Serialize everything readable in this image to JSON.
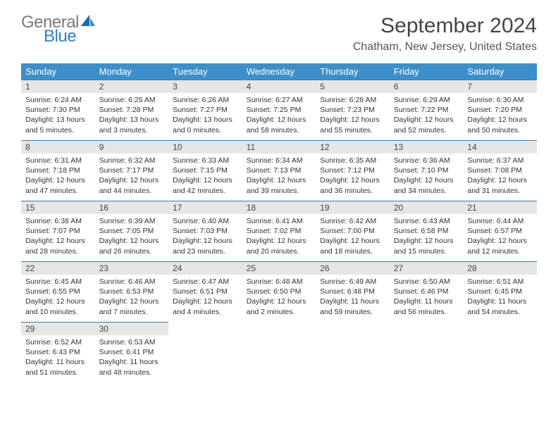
{
  "logo": {
    "part1": "General",
    "part2": "Blue"
  },
  "title": "September 2024",
  "location": "Chatham, New Jersey, United States",
  "colors": {
    "header_bg": "#3d8fc9",
    "header_text": "#ffffff",
    "row_divider": "#3d7aa8",
    "daynum_bg": "#e6e6e6",
    "logo_gray": "#7a7a7a",
    "logo_blue": "#2f81c5",
    "body_text": "#333333"
  },
  "days_of_week": [
    "Sunday",
    "Monday",
    "Tuesday",
    "Wednesday",
    "Thursday",
    "Friday",
    "Saturday"
  ],
  "weeks": [
    [
      {
        "n": "1",
        "sr": "Sunrise: 6:24 AM",
        "ss": "Sunset: 7:30 PM",
        "dl": "Daylight: 13 hours and 5 minutes."
      },
      {
        "n": "2",
        "sr": "Sunrise: 6:25 AM",
        "ss": "Sunset: 7:28 PM",
        "dl": "Daylight: 13 hours and 3 minutes."
      },
      {
        "n": "3",
        "sr": "Sunrise: 6:26 AM",
        "ss": "Sunset: 7:27 PM",
        "dl": "Daylight: 13 hours and 0 minutes."
      },
      {
        "n": "4",
        "sr": "Sunrise: 6:27 AM",
        "ss": "Sunset: 7:25 PM",
        "dl": "Daylight: 12 hours and 58 minutes."
      },
      {
        "n": "5",
        "sr": "Sunrise: 6:28 AM",
        "ss": "Sunset: 7:23 PM",
        "dl": "Daylight: 12 hours and 55 minutes."
      },
      {
        "n": "6",
        "sr": "Sunrise: 6:29 AM",
        "ss": "Sunset: 7:22 PM",
        "dl": "Daylight: 12 hours and 52 minutes."
      },
      {
        "n": "7",
        "sr": "Sunrise: 6:30 AM",
        "ss": "Sunset: 7:20 PM",
        "dl": "Daylight: 12 hours and 50 minutes."
      }
    ],
    [
      {
        "n": "8",
        "sr": "Sunrise: 6:31 AM",
        "ss": "Sunset: 7:18 PM",
        "dl": "Daylight: 12 hours and 47 minutes."
      },
      {
        "n": "9",
        "sr": "Sunrise: 6:32 AM",
        "ss": "Sunset: 7:17 PM",
        "dl": "Daylight: 12 hours and 44 minutes."
      },
      {
        "n": "10",
        "sr": "Sunrise: 6:33 AM",
        "ss": "Sunset: 7:15 PM",
        "dl": "Daylight: 12 hours and 42 minutes."
      },
      {
        "n": "11",
        "sr": "Sunrise: 6:34 AM",
        "ss": "Sunset: 7:13 PM",
        "dl": "Daylight: 12 hours and 39 minutes."
      },
      {
        "n": "12",
        "sr": "Sunrise: 6:35 AM",
        "ss": "Sunset: 7:12 PM",
        "dl": "Daylight: 12 hours and 36 minutes."
      },
      {
        "n": "13",
        "sr": "Sunrise: 6:36 AM",
        "ss": "Sunset: 7:10 PM",
        "dl": "Daylight: 12 hours and 34 minutes."
      },
      {
        "n": "14",
        "sr": "Sunrise: 6:37 AM",
        "ss": "Sunset: 7:08 PM",
        "dl": "Daylight: 12 hours and 31 minutes."
      }
    ],
    [
      {
        "n": "15",
        "sr": "Sunrise: 6:38 AM",
        "ss": "Sunset: 7:07 PM",
        "dl": "Daylight: 12 hours and 28 minutes."
      },
      {
        "n": "16",
        "sr": "Sunrise: 6:39 AM",
        "ss": "Sunset: 7:05 PM",
        "dl": "Daylight: 12 hours and 26 minutes."
      },
      {
        "n": "17",
        "sr": "Sunrise: 6:40 AM",
        "ss": "Sunset: 7:03 PM",
        "dl": "Daylight: 12 hours and 23 minutes."
      },
      {
        "n": "18",
        "sr": "Sunrise: 6:41 AM",
        "ss": "Sunset: 7:02 PM",
        "dl": "Daylight: 12 hours and 20 minutes."
      },
      {
        "n": "19",
        "sr": "Sunrise: 6:42 AM",
        "ss": "Sunset: 7:00 PM",
        "dl": "Daylight: 12 hours and 18 minutes."
      },
      {
        "n": "20",
        "sr": "Sunrise: 6:43 AM",
        "ss": "Sunset: 6:58 PM",
        "dl": "Daylight: 12 hours and 15 minutes."
      },
      {
        "n": "21",
        "sr": "Sunrise: 6:44 AM",
        "ss": "Sunset: 6:57 PM",
        "dl": "Daylight: 12 hours and 12 minutes."
      }
    ],
    [
      {
        "n": "22",
        "sr": "Sunrise: 6:45 AM",
        "ss": "Sunset: 6:55 PM",
        "dl": "Daylight: 12 hours and 10 minutes."
      },
      {
        "n": "23",
        "sr": "Sunrise: 6:46 AM",
        "ss": "Sunset: 6:53 PM",
        "dl": "Daylight: 12 hours and 7 minutes."
      },
      {
        "n": "24",
        "sr": "Sunrise: 6:47 AM",
        "ss": "Sunset: 6:51 PM",
        "dl": "Daylight: 12 hours and 4 minutes."
      },
      {
        "n": "25",
        "sr": "Sunrise: 6:48 AM",
        "ss": "Sunset: 6:50 PM",
        "dl": "Daylight: 12 hours and 2 minutes."
      },
      {
        "n": "26",
        "sr": "Sunrise: 6:49 AM",
        "ss": "Sunset: 6:48 PM",
        "dl": "Daylight: 11 hours and 59 minutes."
      },
      {
        "n": "27",
        "sr": "Sunrise: 6:50 AM",
        "ss": "Sunset: 6:46 PM",
        "dl": "Daylight: 11 hours and 56 minutes."
      },
      {
        "n": "28",
        "sr": "Sunrise: 6:51 AM",
        "ss": "Sunset: 6:45 PM",
        "dl": "Daylight: 11 hours and 54 minutes."
      }
    ],
    [
      {
        "n": "29",
        "sr": "Sunrise: 6:52 AM",
        "ss": "Sunset: 6:43 PM",
        "dl": "Daylight: 11 hours and 51 minutes."
      },
      {
        "n": "30",
        "sr": "Sunrise: 6:53 AM",
        "ss": "Sunset: 6:41 PM",
        "dl": "Daylight: 11 hours and 48 minutes."
      },
      null,
      null,
      null,
      null,
      null
    ]
  ]
}
